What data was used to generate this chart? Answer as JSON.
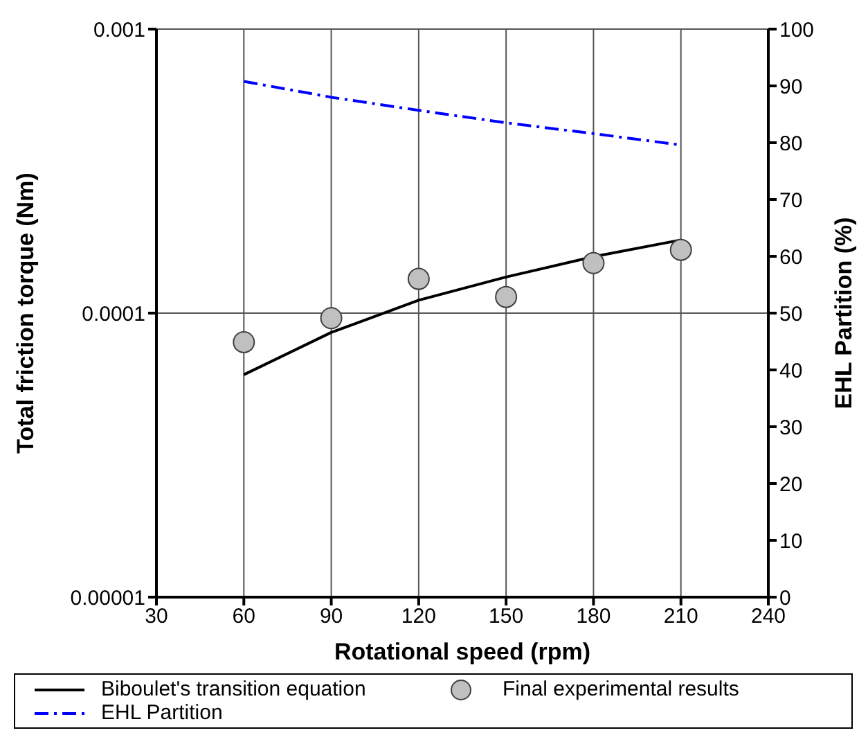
{
  "chart_data": {
    "type": "line",
    "xlabel": "Rotational speed (rpm)",
    "ylabel": "Total friction torque (Nm)",
    "y2label": "EHL Partition (%)",
    "x": [
      60,
      90,
      120,
      150,
      180,
      210
    ],
    "series": [
      {
        "name": "Biboulet's transition equation",
        "color": "#000000",
        "line_style": "solid",
        "marker": "none",
        "values": [
          6.07e-05,
          8.55e-05,
          0.000111,
          0.000134,
          0.000158,
          0.000181
        ]
      },
      {
        "name": "Final experimental results",
        "type": "scatter",
        "color": "#c0c0c0",
        "marker": "circle",
        "values": [
          7.9e-05,
          9.6e-05,
          0.000132,
          0.000114,
          0.00015,
          0.000167
        ]
      },
      {
        "name": "EHL Partition",
        "color": "#0000ff",
        "line_style": "dashed",
        "marker": "none",
        "axis": "y2",
        "values": [
          90.8,
          88.0,
          85.7,
          83.5,
          81.6,
          79.6
        ]
      }
    ],
    "xlim": [
      30,
      240
    ],
    "xticks": [
      30,
      60,
      90,
      120,
      150,
      180,
      210,
      240
    ],
    "ylim": [
      1e-05,
      0.001
    ],
    "yticks": [
      {
        "value": 1e-05,
        "label": "0.00001"
      },
      {
        "value": 0.0001,
        "label": "0.0001"
      },
      {
        "value": 0.001,
        "label": "0.001"
      }
    ],
    "log": "y",
    "y2lim": [
      0,
      100
    ],
    "y2ticks": [
      0,
      10,
      20,
      30,
      40,
      50,
      60,
      70,
      80,
      90,
      100
    ],
    "grid": true,
    "legend": "bottom"
  }
}
